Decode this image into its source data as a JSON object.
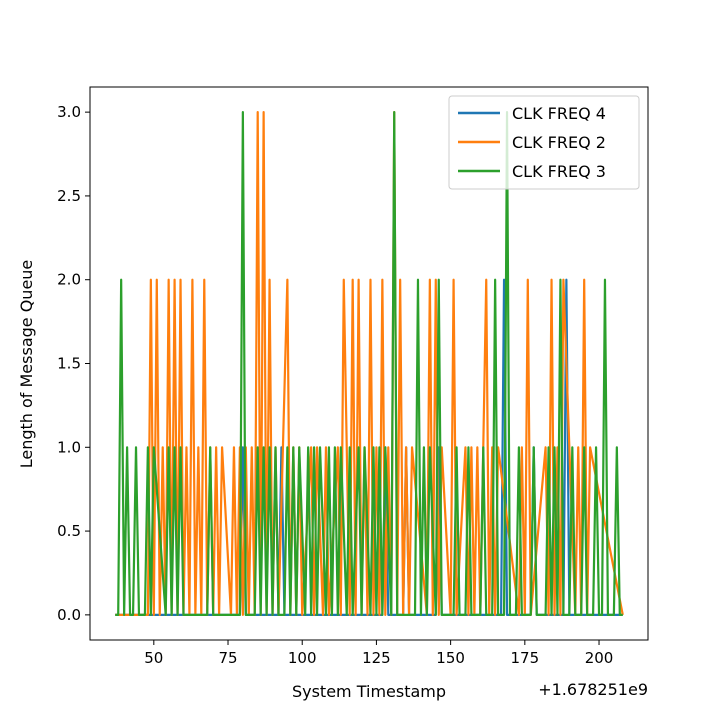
{
  "chart_data": {
    "type": "line",
    "xlabel": "System Timestamp",
    "ylabel": "Length of Message Queue",
    "x_offset_label": "+1.678251e9",
    "xlim": [
      28.5,
      216.5
    ],
    "ylim": [
      -0.15,
      3.15
    ],
    "xticks": [
      50,
      75,
      100,
      125,
      150,
      175,
      200
    ],
    "xtick_labels": [
      "50",
      "75",
      "100",
      "125",
      "150",
      "175",
      "200"
    ],
    "yticks": [
      0.0,
      0.5,
      1.0,
      1.5,
      2.0,
      2.5,
      3.0
    ],
    "ytick_labels": [
      "0.0",
      "0.5",
      "1.0",
      "1.5",
      "2.0",
      "2.5",
      "3.0"
    ],
    "grid": false,
    "legend_position": "top-right",
    "series": [
      {
        "name": "CLK FREQ 4",
        "color": "#1f77b4",
        "x": [
          37,
          79,
          80,
          81,
          92,
          93,
          94,
          127,
          128,
          129,
          134,
          135,
          136,
          145,
          146,
          147,
          167,
          168,
          169,
          177,
          178,
          179,
          188,
          189,
          190,
          191,
          208
        ],
        "y": [
          0,
          0,
          1,
          0,
          0,
          1,
          0,
          0,
          1,
          0,
          0,
          1,
          0,
          0,
          1,
          0,
          0,
          2,
          0,
          0,
          1,
          0,
          0,
          2,
          0,
          0,
          0
        ]
      },
      {
        "name": "CLK FREQ 2",
        "color": "#ff7f0e",
        "x": [
          37,
          48,
          49,
          50,
          51,
          52,
          53,
          54,
          55,
          56,
          57,
          58,
          59,
          60,
          61,
          62,
          63,
          64,
          65,
          66,
          67,
          68,
          69,
          70,
          71,
          72,
          73,
          76,
          77,
          78,
          79,
          80,
          81,
          82,
          83,
          84,
          85,
          86,
          87,
          88,
          89,
          90,
          91,
          92,
          95,
          96,
          97,
          98,
          99,
          100,
          103,
          104,
          105,
          107,
          108,
          109,
          112,
          113,
          114,
          116,
          117,
          118,
          119,
          120,
          121,
          122,
          123,
          124,
          125,
          126,
          127,
          128,
          129,
          130,
          131,
          132,
          133,
          134,
          135,
          136,
          137,
          142,
          143,
          144,
          145,
          146,
          147,
          150,
          151,
          152,
          155,
          156,
          157,
          158,
          159,
          160,
          162,
          163,
          164,
          165,
          166,
          173,
          174,
          175,
          176,
          177,
          182,
          183,
          184,
          185,
          186,
          187,
          188,
          192,
          193,
          194,
          195,
          196,
          197,
          208
        ],
        "y": [
          0,
          0,
          2,
          0,
          2,
          0,
          1,
          0,
          2,
          0,
          2,
          0,
          2,
          0,
          1,
          0,
          2,
          0,
          1,
          0,
          2,
          0,
          1,
          0,
          1,
          0,
          1,
          0,
          1,
          0,
          1,
          0,
          1,
          0,
          1,
          0,
          3,
          0,
          3,
          0,
          2,
          0,
          1,
          0,
          2,
          0,
          1,
          0,
          1,
          0,
          1,
          0,
          1,
          0,
          1,
          0,
          1,
          0,
          2,
          0,
          2,
          0,
          2,
          0,
          1,
          0,
          2,
          0,
          1,
          0,
          2,
          0,
          1,
          0,
          3,
          0,
          2,
          0,
          1,
          0,
          1,
          0,
          2,
          0,
          2,
          0,
          1,
          0,
          2,
          0,
          1,
          0,
          1,
          0,
          1,
          0,
          2,
          0,
          1,
          0,
          1,
          0,
          1,
          0,
          2,
          0,
          1,
          0,
          2,
          0,
          1,
          0,
          2,
          0,
          1,
          0,
          2,
          0,
          1,
          0
        ],
        "legend_index": 1
      },
      {
        "name": "CLK FREQ 3",
        "color": "#2ca02c",
        "x": [
          37,
          38,
          39,
          40,
          41,
          42,
          43,
          44,
          45,
          47,
          48,
          49,
          50,
          54,
          55,
          56,
          57,
          58,
          59,
          60,
          68,
          69,
          70,
          79,
          80,
          81,
          84,
          85,
          86,
          87,
          88,
          89,
          90,
          91,
          92,
          94,
          95,
          96,
          97,
          98,
          99,
          101,
          102,
          103,
          104,
          105,
          106,
          108,
          109,
          110,
          111,
          112,
          113,
          115,
          116,
          117,
          119,
          120,
          121,
          123,
          124,
          125,
          126,
          127,
          128,
          130,
          131,
          132,
          138,
          139,
          140,
          141,
          142,
          143,
          145,
          146,
          147,
          151,
          152,
          153,
          155,
          156,
          157,
          160,
          161,
          162,
          164,
          165,
          166,
          168,
          169,
          170,
          172,
          173,
          174,
          177,
          178,
          179,
          182,
          183,
          184,
          185,
          186,
          187,
          188,
          190,
          191,
          192,
          194,
          195,
          196,
          198,
          199,
          200,
          201,
          202,
          203,
          205,
          206,
          207,
          208
        ],
        "y": [
          0,
          0,
          2,
          0,
          1,
          0,
          0,
          1,
          0,
          0,
          1,
          0,
          1,
          0,
          1,
          0,
          1,
          0,
          1,
          0,
          0,
          1,
          0,
          0,
          3,
          0,
          0,
          1,
          0,
          1,
          0,
          1,
          0,
          1,
          0,
          0,
          1,
          0,
          1,
          0,
          1,
          0,
          1,
          0,
          1,
          0,
          1,
          0,
          1,
          0,
          1,
          0,
          1,
          0,
          1,
          0,
          1,
          0,
          1,
          0,
          1,
          0,
          1,
          0,
          1,
          0,
          3,
          0,
          0,
          2,
          0,
          1,
          0,
          1,
          0,
          2,
          0,
          0,
          1,
          0,
          0,
          1,
          0,
          0,
          1,
          0,
          0,
          2,
          0,
          0,
          3,
          0,
          0,
          1,
          0,
          0,
          1,
          0,
          0,
          1,
          0,
          1,
          0,
          2,
          0,
          0,
          1,
          0,
          0,
          1,
          0,
          0,
          1,
          0,
          0,
          2,
          0,
          0,
          1,
          0,
          0
        ]
      }
    ]
  }
}
